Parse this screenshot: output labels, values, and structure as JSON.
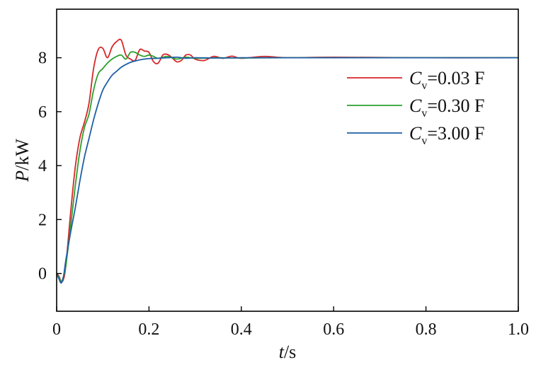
{
  "chart_data": {
    "type": "line",
    "xlabel": "t/s",
    "xlabel_var": "t",
    "xlabel_unit": "/s",
    "ylabel": "P/kW",
    "ylabel_var": "P",
    "ylabel_unit": "/kW",
    "xlim": [
      0,
      1.0
    ],
    "ylim": [
      -1.4,
      9.8
    ],
    "x_ticks": [
      0,
      0.2,
      0.4,
      0.6,
      0.8,
      1.0
    ],
    "x_tick_labels": [
      "0",
      "0.2",
      "0.4",
      "0.6",
      "0.8",
      "1.0"
    ],
    "y_ticks": [
      0,
      2,
      4,
      6,
      8
    ],
    "y_tick_labels": [
      "0",
      "2",
      "4",
      "6",
      "8"
    ],
    "grid": false,
    "legend_position": "top-right",
    "series": [
      {
        "name": "Cv=0.03 F",
        "legend_var": "C",
        "legend_sub": "v",
        "legend_value": "=0.03 F",
        "color": "#d62728",
        "x": [
          0,
          0.005,
          0.01,
          0.015,
          0.02,
          0.03,
          0.04,
          0.05,
          0.06,
          0.07,
          0.08,
          0.09,
          0.1,
          0.11,
          0.12,
          0.13,
          0.14,
          0.15,
          0.16,
          0.17,
          0.18,
          0.19,
          0.2,
          0.21,
          0.22,
          0.23,
          0.24,
          0.25,
          0.26,
          0.27,
          0.28,
          0.29,
          0.3,
          0.32,
          0.34,
          0.36,
          0.38,
          0.4,
          0.45,
          0.5,
          0.6,
          0.8,
          1.0
        ],
        "y": [
          0,
          -0.1,
          -0.3,
          -0.2,
          0.3,
          2.2,
          3.9,
          5.0,
          5.6,
          6.3,
          7.6,
          8.3,
          8.35,
          8.0,
          8.4,
          8.6,
          8.65,
          8.1,
          7.95,
          7.9,
          8.3,
          8.25,
          8.2,
          7.85,
          7.8,
          8.1,
          8.12,
          8.0,
          7.85,
          7.9,
          8.1,
          8.1,
          7.95,
          7.9,
          8.05,
          7.98,
          8.06,
          7.98,
          8.05,
          8.0,
          8.02,
          8.0,
          8.0
        ]
      },
      {
        "name": "Cv=0.30 F",
        "legend_var": "C",
        "legend_sub": "v",
        "legend_value": "=0.30 F",
        "color": "#2ca02c",
        "x": [
          0,
          0.005,
          0.01,
          0.015,
          0.02,
          0.03,
          0.04,
          0.05,
          0.06,
          0.07,
          0.08,
          0.09,
          0.1,
          0.11,
          0.12,
          0.13,
          0.14,
          0.15,
          0.16,
          0.17,
          0.18,
          0.19,
          0.2,
          0.21,
          0.22,
          0.24,
          0.26,
          0.28,
          0.3,
          0.35,
          0.4,
          0.5,
          0.7,
          1.0
        ],
        "y": [
          0,
          -0.15,
          -0.3,
          -0.1,
          0.3,
          1.7,
          3.2,
          4.5,
          5.4,
          5.9,
          6.8,
          7.4,
          7.6,
          7.8,
          7.95,
          8.05,
          8.1,
          7.95,
          8.2,
          8.2,
          8.1,
          8.05,
          8.1,
          8.05,
          7.98,
          8.05,
          7.95,
          8.02,
          7.98,
          8.0,
          7.99,
          8.0,
          8.0,
          8.0
        ]
      },
      {
        "name": "Cv=3.00 F",
        "legend_var": "C",
        "legend_sub": "v",
        "legend_value": "=3.00 F",
        "color": "#1f5fa6",
        "x": [
          0,
          0.005,
          0.01,
          0.015,
          0.02,
          0.03,
          0.04,
          0.05,
          0.06,
          0.07,
          0.08,
          0.09,
          0.1,
          0.11,
          0.12,
          0.13,
          0.14,
          0.15,
          0.16,
          0.17,
          0.18,
          0.19,
          0.2,
          0.22,
          0.24,
          0.26,
          0.28,
          0.3,
          0.35,
          0.4,
          0.5,
          0.7,
          1.0
        ],
        "y": [
          0,
          -0.2,
          -0.35,
          -0.1,
          0.5,
          1.5,
          2.4,
          3.4,
          4.3,
          5.0,
          5.7,
          6.3,
          6.8,
          7.1,
          7.35,
          7.5,
          7.65,
          7.75,
          7.83,
          7.88,
          7.92,
          7.95,
          7.97,
          7.98,
          8.0,
          8.02,
          7.98,
          8.0,
          7.99,
          8.0,
          8.0,
          8.0,
          8.0
        ]
      }
    ]
  }
}
